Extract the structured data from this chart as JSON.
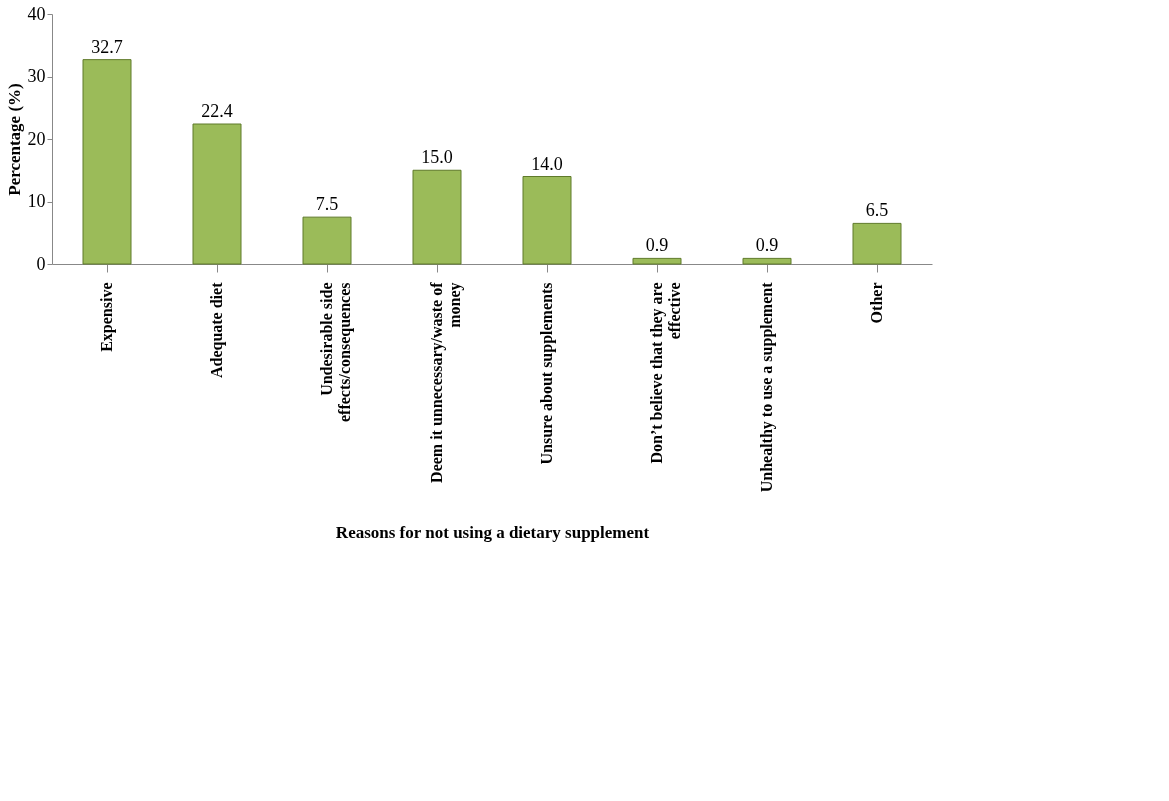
{
  "chart_data": {
    "type": "bar",
    "xlabel": "Reasons for not using a dietary supplement",
    "ylabel": "Percentage (%)",
    "categories": [
      "Expensive",
      "Adequate diet",
      "Undesirable side effects/consequences",
      "Deem it unnecessary/waste of money",
      "Unsure about supplements",
      "Don’t believe that they are effective",
      "Unhealthy to use a supplement",
      "Other"
    ],
    "values": [
      32.7,
      22.4,
      7.5,
      15.0,
      14.0,
      0.9,
      0.9,
      6.5
    ],
    "value_labels": [
      "32.7",
      "22.4",
      "7.5",
      "15.0",
      "14.0",
      "0.9",
      "0.9",
      "6.5"
    ],
    "color": "#9bbb59",
    "ylim": [
      0,
      40
    ],
    "yticks": [
      0,
      10,
      20,
      30,
      40
    ],
    "grid": false
  }
}
